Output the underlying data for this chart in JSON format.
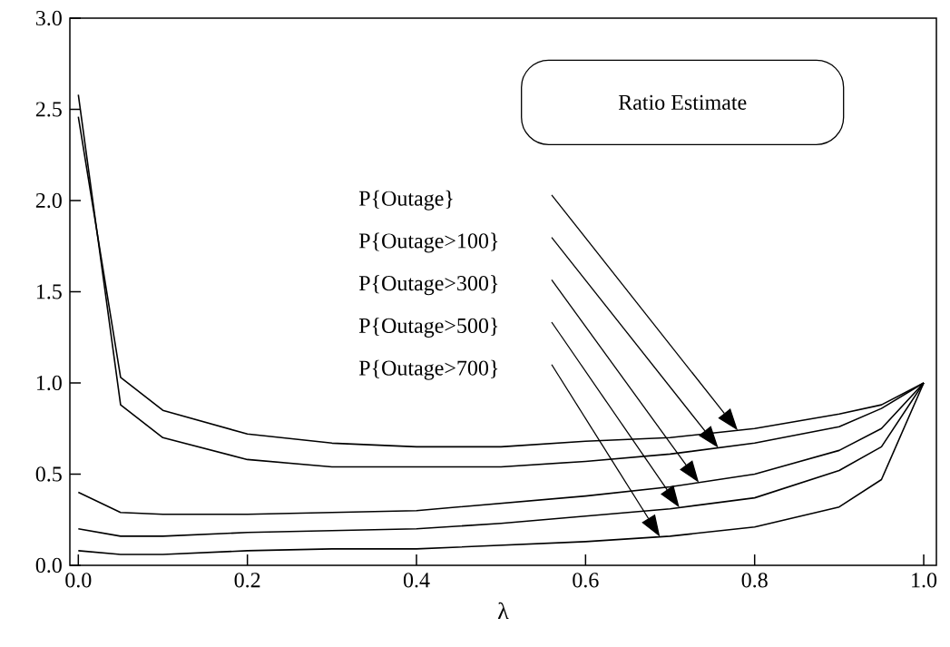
{
  "chart_data": {
    "type": "line",
    "xlabel": "λ",
    "x": [
      0,
      0.05,
      0.1,
      0.2,
      0.3,
      0.4,
      0.5,
      0.6,
      0.7,
      0.8,
      0.9,
      0.95,
      1.0
    ],
    "xlim": [
      -0.01,
      1.015
    ],
    "ylim": [
      0,
      3
    ],
    "xticks": [
      {
        "value": 0,
        "label": "0.0"
      },
      {
        "value": 0.2,
        "label": "0.2"
      },
      {
        "value": 0.4,
        "label": "0.4"
      },
      {
        "value": 0.6,
        "label": "0.6"
      },
      {
        "value": 0.8,
        "label": "0.8"
      },
      {
        "value": 1.0,
        "label": "1.0"
      }
    ],
    "yticks": [
      {
        "value": 0,
        "label": "0.0"
      },
      {
        "value": 0.5,
        "label": "0.5"
      },
      {
        "value": 1.0,
        "label": "1.0"
      },
      {
        "value": 1.5,
        "label": "1.5"
      },
      {
        "value": 2.0,
        "label": "2.0"
      },
      {
        "value": 2.5,
        "label": "2.5"
      },
      {
        "value": 3.0,
        "label": "3.0"
      }
    ],
    "marker": "none",
    "line_style": "solid",
    "series": [
      {
        "color": "#000000",
        "values": [
          2.46,
          1.03,
          0.85,
          0.72,
          0.67,
          0.65,
          0.65,
          0.68,
          0.7,
          0.75,
          0.83,
          0.88,
          1.0
        ]
      },
      {
        "color": "#000000",
        "values": [
          2.58,
          0.88,
          0.7,
          0.58,
          0.54,
          0.54,
          0.54,
          0.57,
          0.61,
          0.67,
          0.76,
          0.86,
          1.0
        ]
      },
      {
        "color": "#000000",
        "values": [
          0.4,
          0.29,
          0.28,
          0.28,
          0.29,
          0.3,
          0.34,
          0.38,
          0.43,
          0.5,
          0.63,
          0.75,
          1.0
        ]
      },
      {
        "color": "#000000",
        "values": [
          0.2,
          0.16,
          0.16,
          0.18,
          0.19,
          0.2,
          0.23,
          0.27,
          0.31,
          0.37,
          0.52,
          0.65,
          1.0
        ]
      },
      {
        "color": "#000000",
        "values": [
          0.08,
          0.06,
          0.06,
          0.08,
          0.09,
          0.09,
          0.11,
          0.13,
          0.16,
          0.21,
          0.32,
          0.47,
          1.0
        ]
      }
    ],
    "annotations": [
      "Ratio Estimate",
      "P{Outage}",
      "P{Outage>100}",
      "P{Outage>300}",
      "P{Outage>500}",
      "P{Outage>700}"
    ]
  }
}
